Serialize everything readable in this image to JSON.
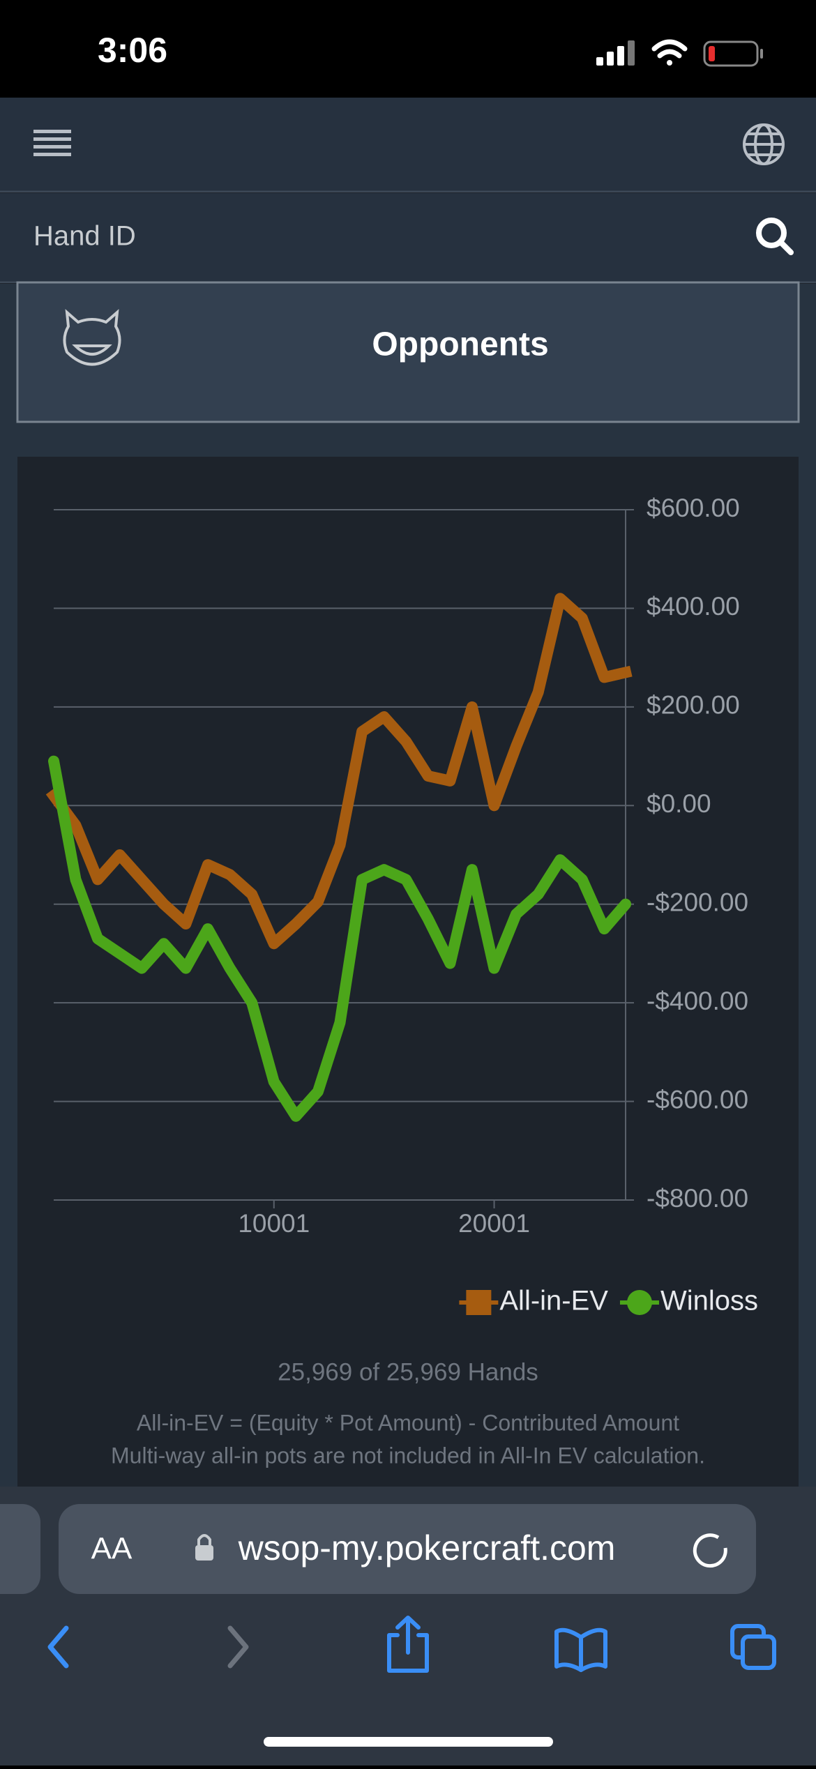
{
  "status_bar": {
    "time": "3:06"
  },
  "search": {
    "placeholder": "Hand ID"
  },
  "opponents": {
    "label": "Opponents"
  },
  "chart_data": {
    "type": "line",
    "x": [
      1,
      1000,
      2000,
      3000,
      4000,
      5000,
      6000,
      7000,
      8000,
      9000,
      10000,
      11000,
      12000,
      13000,
      14000,
      15000,
      16000,
      17000,
      18000,
      19000,
      20000,
      21000,
      22000,
      23000,
      24000,
      25000,
      25969
    ],
    "series": [
      {
        "name": "All-in-EV",
        "color": "#a65c10",
        "marker": "square",
        "values": [
          20,
          -40,
          -150,
          -100,
          -150,
          -200,
          -240,
          -120,
          -140,
          -180,
          -280,
          -240,
          -195,
          -80,
          150,
          180,
          130,
          60,
          50,
          200,
          0,
          120,
          230,
          420,
          380,
          260,
          270
        ]
      },
      {
        "name": "Winloss",
        "color": "#4ca61a",
        "marker": "circle",
        "values": [
          90,
          -150,
          -270,
          -300,
          -330,
          -280,
          -330,
          -250,
          -330,
          -400,
          -560,
          -630,
          -580,
          -440,
          -150,
          -130,
          -150,
          -230,
          -320,
          -130,
          -330,
          -220,
          -180,
          -110,
          -150,
          -250,
          -200
        ]
      }
    ],
    "xlim": [
      1,
      25969
    ],
    "xticks": [
      10001,
      20001
    ],
    "ylim": [
      -800,
      600
    ],
    "yticks": [
      {
        "value": 600,
        "label": "$600.00"
      },
      {
        "value": 400,
        "label": "$400.00"
      },
      {
        "value": 200,
        "label": "$200.00"
      },
      {
        "value": 0,
        "label": "$0.00"
      },
      {
        "value": -200,
        "label": "-$200.00"
      },
      {
        "value": -400,
        "label": "-$400.00"
      },
      {
        "value": -600,
        "label": "-$600.00"
      },
      {
        "value": -800,
        "label": "-$800.00"
      }
    ],
    "grid": true,
    "legend": "bottom-right"
  },
  "footer": {
    "hands_count": "25,969 of 25,969 Hands",
    "notes": [
      "All-in-EV = (Equity * Pot Amount) - Contributed Amount",
      "Multi-way all-in pots are not included in All-In EV calculation."
    ]
  },
  "browser": {
    "text_size": "AA",
    "url": "wsop-my.pokercraft.com"
  }
}
